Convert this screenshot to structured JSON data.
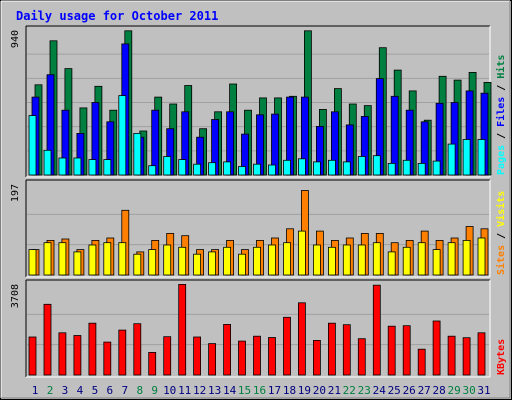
{
  "title": "Daily usage for October 2011",
  "colors": {
    "background": "#c0c0c0",
    "panel": "#c0c0c0",
    "title": "#0000ff",
    "pages": "#00ffff",
    "files": "#0000ff",
    "hits": "#008040",
    "sites": "#ff8000",
    "visits": "#ffff00",
    "kbytes": "#ff0000",
    "weekday_label": "#000080",
    "weekend_label": "#008040"
  },
  "chart_data": [
    {
      "type": "bar",
      "panel": "hits",
      "ylim": [
        0,
        940
      ],
      "y_max_label": "940",
      "legend": [
        {
          "text": "Pages",
          "color": "#00ffff"
        },
        {
          "text": "Files",
          "color": "#0000ff"
        },
        {
          "text": "Hits",
          "color": "#008040"
        }
      ],
      "categories": [
        "1",
        "2",
        "3",
        "4",
        "5",
        "6",
        "7",
        "8",
        "9",
        "10",
        "11",
        "12",
        "13",
        "14",
        "15",
        "16",
        "17",
        "18",
        "19",
        "20",
        "21",
        "22",
        "23",
        "24",
        "25",
        "26",
        "27",
        "28",
        "29",
        "30",
        "31"
      ],
      "series": [
        {
          "name": "Hits",
          "color": "#008040",
          "values": [
            585,
            870,
            690,
            435,
            575,
            420,
            935,
            285,
            505,
            460,
            580,
            300,
            410,
            590,
            420,
            500,
            500,
            510,
            935,
            425,
            560,
            460,
            450,
            825,
            680,
            545,
            355,
            640,
            615,
            665,
            600
          ]
        },
        {
          "name": "Files",
          "color": "#0000ff",
          "values": [
            505,
            650,
            420,
            270,
            470,
            345,
            850,
            245,
            420,
            300,
            410,
            245,
            360,
            410,
            265,
            390,
            395,
            505,
            505,
            315,
            410,
            325,
            380,
            625,
            510,
            420,
            345,
            465,
            470,
            545,
            530
          ]
        },
        {
          "name": "Pages",
          "color": "#00ffff",
          "values": [
            385,
            160,
            110,
            110,
            100,
            100,
            515,
            270,
            60,
            120,
            100,
            70,
            80,
            85,
            55,
            70,
            65,
            95,
            105,
            85,
            95,
            85,
            120,
            125,
            75,
            95,
            75,
            90,
            200,
            230,
            230
          ]
        }
      ]
    },
    {
      "type": "bar",
      "panel": "sites",
      "ylim": [
        0,
        197
      ],
      "y_max_label": "197",
      "legend": [
        {
          "text": "Sites",
          "color": "#ff8000"
        },
        {
          "text": "Visits",
          "color": "#ffff00"
        }
      ],
      "categories": [
        "1",
        "2",
        "3",
        "4",
        "5",
        "6",
        "7",
        "8",
        "9",
        "10",
        "11",
        "12",
        "13",
        "14",
        "15",
        "16",
        "17",
        "18",
        "19",
        "20",
        "21",
        "22",
        "23",
        "24",
        "25",
        "26",
        "27",
        "28",
        "29",
        "30",
        "31"
      ],
      "series": [
        {
          "name": "Sites",
          "color": "#ff8000",
          "values": [
            55,
            75,
            78,
            55,
            75,
            80,
            140,
            50,
            75,
            90,
            85,
            55,
            55,
            75,
            55,
            75,
            80,
            100,
            183,
            95,
            75,
            80,
            90,
            90,
            70,
            75,
            95,
            75,
            80,
            105,
            100
          ]
        },
        {
          "name": "Visits",
          "color": "#ffff00",
          "values": [
            55,
            70,
            70,
            50,
            65,
            70,
            70,
            45,
            55,
            65,
            60,
            45,
            50,
            60,
            45,
            60,
            65,
            70,
            95,
            65,
            60,
            65,
            65,
            70,
            50,
            60,
            70,
            55,
            70,
            75,
            80
          ]
        }
      ]
    },
    {
      "type": "bar",
      "panel": "kbytes",
      "ylim": [
        0,
        3708
      ],
      "y_max_label": "3708",
      "legend": [
        {
          "text": "KBytes",
          "color": "#ff0000"
        }
      ],
      "categories": [
        "1",
        "2",
        "3",
        "4",
        "5",
        "6",
        "7",
        "8",
        "9",
        "10",
        "11",
        "12",
        "13",
        "14",
        "15",
        "16",
        "17",
        "18",
        "19",
        "20",
        "21",
        "22",
        "23",
        "24",
        "25",
        "26",
        "27",
        "28",
        "29",
        "30",
        "31"
      ],
      "series": [
        {
          "name": "KBytes",
          "color": "#ff0000",
          "values": [
            1550,
            2880,
            1720,
            1610,
            2110,
            1340,
            1830,
            2090,
            920,
            1560,
            3690,
            1550,
            1280,
            2060,
            1380,
            1580,
            1530,
            2350,
            2940,
            1410,
            2110,
            2050,
            1480,
            3660,
            1990,
            2010,
            1050,
            2200,
            1580,
            1520,
            1720
          ]
        }
      ]
    }
  ],
  "x_labels": [
    {
      "text": "1",
      "weekend": false
    },
    {
      "text": "2",
      "weekend": true
    },
    {
      "text": "3",
      "weekend": false
    },
    {
      "text": "4",
      "weekend": false
    },
    {
      "text": "5",
      "weekend": false
    },
    {
      "text": "6",
      "weekend": false
    },
    {
      "text": "7",
      "weekend": false
    },
    {
      "text": "8",
      "weekend": true
    },
    {
      "text": "9",
      "weekend": true
    },
    {
      "text": "10",
      "weekend": false
    },
    {
      "text": "11",
      "weekend": false
    },
    {
      "text": "12",
      "weekend": false
    },
    {
      "text": "13",
      "weekend": false
    },
    {
      "text": "14",
      "weekend": false
    },
    {
      "text": "15",
      "weekend": true
    },
    {
      "text": "16",
      "weekend": true
    },
    {
      "text": "17",
      "weekend": false
    },
    {
      "text": "18",
      "weekend": false
    },
    {
      "text": "19",
      "weekend": false
    },
    {
      "text": "20",
      "weekend": false
    },
    {
      "text": "21",
      "weekend": false
    },
    {
      "text": "22",
      "weekend": true
    },
    {
      "text": "23",
      "weekend": true
    },
    {
      "text": "24",
      "weekend": false
    },
    {
      "text": "25",
      "weekend": false
    },
    {
      "text": "26",
      "weekend": false
    },
    {
      "text": "27",
      "weekend": false
    },
    {
      "text": "28",
      "weekend": false
    },
    {
      "text": "29",
      "weekend": true
    },
    {
      "text": "30",
      "weekend": true
    },
    {
      "text": "31",
      "weekend": false
    }
  ]
}
